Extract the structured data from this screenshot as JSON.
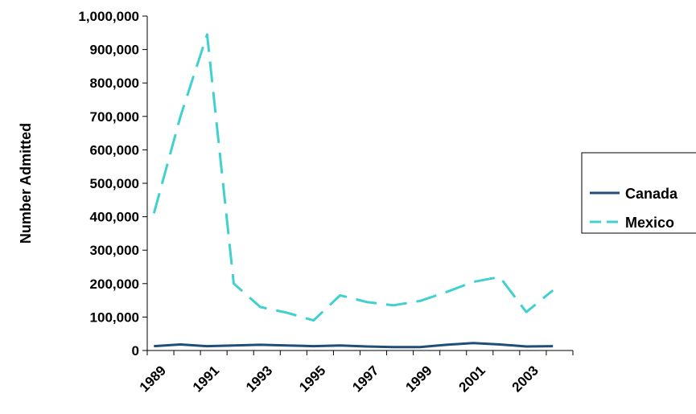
{
  "chart_data": {
    "type": "line",
    "title": "",
    "xlabel": "",
    "ylabel": "Number Admitted",
    "ylim": [
      0,
      1000000
    ],
    "y_ticks": [
      0,
      100000,
      200000,
      300000,
      400000,
      500000,
      600000,
      700000,
      800000,
      900000,
      1000000
    ],
    "y_tick_labels": [
      "0",
      "100,000",
      "200,000",
      "300,000",
      "400,000",
      "500,000",
      "600,000",
      "700,000",
      "800,000",
      "900,000",
      "1,000,000"
    ],
    "x_tick_labels": [
      "1989",
      "1991",
      "1993",
      "1995",
      "1997",
      "1999",
      "2001",
      "2003"
    ],
    "x": [
      1989,
      1990,
      1991,
      1992,
      1993,
      1994,
      1995,
      1996,
      1997,
      1998,
      1999,
      2000,
      2001,
      2002,
      2003,
      2004
    ],
    "grid": false,
    "legend_position": "right",
    "series": [
      {
        "name": "Canada",
        "color": "#1f4e79",
        "style": "solid",
        "values": [
          13000,
          18000,
          13000,
          15000,
          17000,
          15000,
          13000,
          15000,
          12000,
          10000,
          10000,
          17000,
          22000,
          18000,
          12000,
          13000
        ]
      },
      {
        "name": "Mexico",
        "color": "#40d0d0",
        "style": "dashed",
        "values": [
          410000,
          700000,
          945000,
          200000,
          130000,
          113000,
          90000,
          165000,
          145000,
          135000,
          148000,
          175000,
          205000,
          220000,
          115000,
          180000
        ]
      }
    ]
  }
}
